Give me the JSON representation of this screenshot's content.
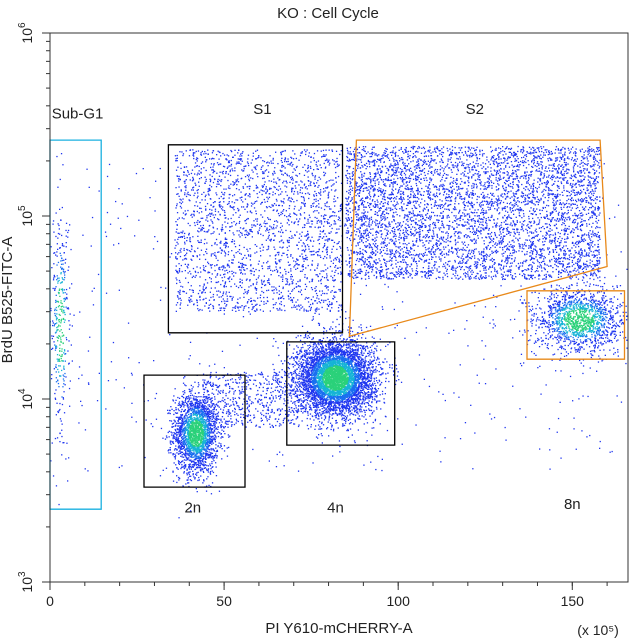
{
  "chart_data": {
    "type": "scatter",
    "title": "KO : Cell Cycle",
    "xlabel": "PI Y610-mCHERRY-A",
    "x_multiplier": "(x 10⁵)",
    "ylabel": "BrdU B525-FITC-A",
    "xlim": [
      0,
      166
    ],
    "ylim": [
      1000,
      1000000
    ],
    "y_scale": "log",
    "grid": false,
    "x_ticks": [
      {
        "value": 0,
        "label": "0"
      },
      {
        "value": 50,
        "label": "50"
      },
      {
        "value": 100,
        "label": "100"
      },
      {
        "value": 150,
        "label": "150"
      }
    ],
    "x_minor_step": 10,
    "y_ticks": [
      {
        "value": 1000,
        "base": "10",
        "exp": "3"
      },
      {
        "value": 10000,
        "base": "10",
        "exp": "4"
      },
      {
        "value": 100000,
        "base": "10",
        "exp": "5"
      },
      {
        "value": 1000000,
        "base": "10",
        "exp": "6"
      }
    ],
    "gates": [
      {
        "label": "Sub-G1",
        "color": "#1ab0e0",
        "points": [
          [
            0,
            2500
          ],
          [
            14.7,
            2500
          ],
          [
            14.7,
            260000
          ],
          [
            0,
            260000
          ]
        ]
      },
      {
        "label": "S1",
        "color": "#000000",
        "points": [
          [
            34,
            23000
          ],
          [
            84,
            23000
          ],
          [
            84,
            245000
          ],
          [
            34,
            245000
          ]
        ]
      },
      {
        "label": "S2",
        "color": "#e8891a",
        "points": [
          [
            88,
            260000
          ],
          [
            158,
            260000
          ],
          [
            160,
            53000
          ],
          [
            86,
            22000
          ]
        ]
      },
      {
        "label": "2n",
        "color": "#000000",
        "points": [
          [
            27,
            3300
          ],
          [
            56,
            3300
          ],
          [
            56,
            13500
          ],
          [
            27,
            13500
          ]
        ]
      },
      {
        "label": "4n",
        "color": "#000000",
        "points": [
          [
            68,
            5600
          ],
          [
            99,
            5600
          ],
          [
            99,
            20500
          ],
          [
            68,
            20500
          ]
        ]
      },
      {
        "label": "8n",
        "color": "#e8891a",
        "points": [
          [
            137,
            16500
          ],
          [
            165,
            16500
          ],
          [
            165,
            39000
          ],
          [
            137,
            39000
          ]
        ]
      }
    ],
    "gate_labels": [
      {
        "text": "Sub-G1",
        "color": "#1ab0e0",
        "x": 0.5,
        "y": 340000
      },
      {
        "text": "S1",
        "color": "#000000",
        "x": 61,
        "y": 360000
      },
      {
        "text": "S2",
        "color": "#e8891a",
        "x": 122,
        "y": 360000
      },
      {
        "text": "2n",
        "color": "#000000",
        "x": 41,
        "y": 2400
      },
      {
        "text": "4n",
        "color": "#000000",
        "x": 82,
        "y": 2400
      },
      {
        "text": "8n",
        "color": "#e8891a",
        "x": 150,
        "y": 2500
      }
    ],
    "populations": [
      {
        "name": "2n",
        "cx": 42,
        "cy": 6500,
        "sx": 3.2,
        "sy_log": 0.11,
        "n": 2200
      },
      {
        "name": "4n",
        "cx": 82,
        "cy": 13000,
        "sx": 5.5,
        "sy_log": 0.1,
        "n": 5200
      },
      {
        "name": "S1",
        "x_range": [
          36,
          84
        ],
        "y_range": [
          30000,
          230000
        ],
        "n": 2200
      },
      {
        "name": "S2",
        "x_range": [
          85,
          158
        ],
        "y_range": [
          45000,
          240000
        ],
        "n": 5000
      },
      {
        "name": "8n",
        "cx": 152,
        "cy": 27000,
        "sx": 6.5,
        "sy_log": 0.09,
        "n": 1500
      },
      {
        "name": "Sub-G1",
        "cx": 3,
        "cy": 25000,
        "sx": 1.4,
        "sy_log": 0.32,
        "n": 350
      },
      {
        "name": "bridge",
        "x_range": [
          44,
          72
        ],
        "y_range": [
          7000,
          14000
        ],
        "n": 500
      },
      {
        "name": "background",
        "x_range": [
          5,
          165
        ],
        "y_range": [
          4000,
          200000
        ],
        "n": 500
      }
    ],
    "point_color": "#1f36f0"
  }
}
